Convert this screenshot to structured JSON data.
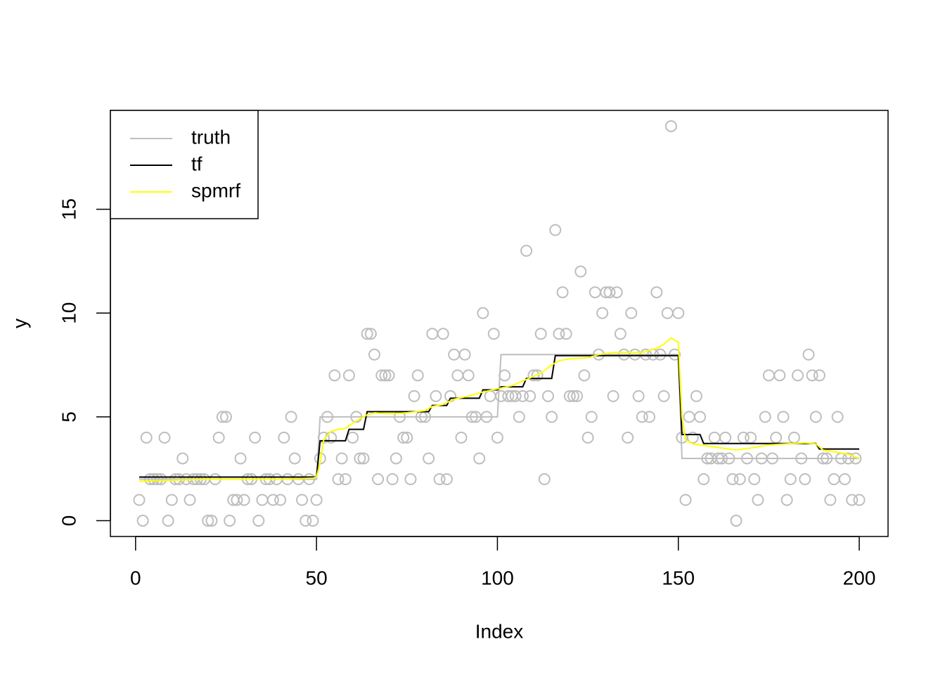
{
  "chart_data": {
    "type": "line",
    "x_label": "Index",
    "y_label": "y",
    "xlim": [
      -6.96,
      207.96
    ],
    "ylim": [
      -0.76,
      19.76
    ],
    "xticks": [
      0,
      50,
      100,
      150,
      200
    ],
    "yticks": [
      0,
      5,
      10,
      15
    ],
    "legend": "top-left",
    "scatter": {
      "color": "#bebebe",
      "x": [
        1,
        2,
        3,
        4,
        5,
        6,
        7,
        8,
        9,
        10,
        11,
        12,
        13,
        14,
        15,
        16,
        17,
        18,
        19,
        20,
        21,
        22,
        23,
        24,
        25,
        26,
        27,
        28,
        29,
        30,
        31,
        32,
        33,
        34,
        35,
        36,
        37,
        38,
        39,
        40,
        41,
        42,
        43,
        44,
        45,
        46,
        47,
        48,
        49,
        50,
        51,
        52,
        53,
        54,
        55,
        56,
        57,
        58,
        59,
        60,
        61,
        62,
        63,
        64,
        65,
        66,
        67,
        68,
        69,
        70,
        71,
        72,
        73,
        74,
        75,
        76,
        77,
        78,
        79,
        80,
        81,
        82,
        83,
        84,
        85,
        86,
        87,
        88,
        89,
        90,
        91,
        92,
        93,
        94,
        95,
        96,
        97,
        98,
        99,
        100,
        101,
        102,
        103,
        104,
        105,
        106,
        107,
        108,
        109,
        110,
        111,
        112,
        113,
        114,
        115,
        116,
        117,
        118,
        119,
        120,
        121,
        122,
        123,
        124,
        125,
        126,
        127,
        128,
        129,
        130,
        131,
        132,
        133,
        134,
        135,
        136,
        137,
        138,
        139,
        140,
        141,
        142,
        143,
        144,
        145,
        146,
        147,
        148,
        149,
        150,
        151,
        152,
        153,
        154,
        155,
        156,
        157,
        158,
        159,
        160,
        161,
        162,
        163,
        164,
        165,
        166,
        167,
        168,
        169,
        170,
        171,
        172,
        173,
        174,
        175,
        176,
        177,
        178,
        179,
        180,
        181,
        182,
        183,
        184,
        185,
        186,
        187,
        188,
        189,
        190,
        191,
        192,
        193,
        194,
        195,
        196,
        197,
        198,
        199,
        200
      ],
      "values": [
        1,
        0,
        4,
        2,
        2,
        2,
        2,
        4,
        0,
        1,
        2,
        2,
        3,
        2,
        1,
        2,
        2,
        2,
        2,
        0,
        0,
        2,
        4,
        5,
        5,
        0,
        1,
        1,
        3,
        1,
        2,
        2,
        4,
        0,
        1,
        2,
        2,
        1,
        2,
        1,
        4,
        2,
        5,
        3,
        2,
        1,
        0,
        2,
        0,
        1,
        3,
        4,
        5,
        4,
        7,
        2,
        3,
        2,
        7,
        4,
        5,
        3,
        3,
        9,
        9,
        8,
        2,
        7,
        7,
        7,
        2,
        3,
        5,
        4,
        4,
        2,
        6,
        7,
        5,
        5,
        3,
        9,
        6,
        2,
        9,
        2,
        6,
        8,
        7,
        4,
        8,
        7,
        5,
        5,
        3,
        10,
        5,
        6,
        9,
        4,
        6,
        7,
        6,
        6,
        6,
        5,
        6,
        13,
        6,
        7,
        7,
        9,
        2,
        6,
        5,
        14,
        9,
        11,
        9,
        6,
        6,
        6,
        12,
        7,
        4,
        5,
        11,
        8,
        10,
        11,
        11,
        6,
        11,
        9,
        8,
        4,
        10,
        8,
        6,
        5,
        8,
        5,
        8,
        11,
        8,
        6,
        10,
        19,
        8,
        10,
        4,
        1,
        5,
        4,
        6,
        5,
        2,
        3,
        3,
        4,
        3,
        3,
        4,
        3,
        2,
        0,
        2,
        4,
        3,
        4,
        2,
        1,
        3,
        5,
        7,
        3,
        4,
        7,
        5,
        1,
        2,
        4,
        7,
        3,
        2,
        8,
        7,
        5,
        7,
        3,
        3,
        1,
        2,
        5,
        3,
        2,
        3,
        1,
        3,
        1
      ]
    },
    "series": [
      {
        "name": "truth",
        "color": "#bebebe",
        "x": [
          1,
          50,
          51,
          100,
          101,
          150,
          151,
          200
        ],
        "values": [
          2,
          2,
          5,
          5,
          8,
          8,
          3,
          3
        ]
      },
      {
        "name": "tf",
        "color": "#000000",
        "x": [
          1,
          50,
          51,
          58,
          59,
          63,
          64,
          81,
          82,
          86,
          87,
          95,
          96,
          100,
          101,
          107,
          108,
          115,
          116,
          150,
          151,
          156,
          157,
          188,
          189,
          200
        ],
        "values": [
          2.1,
          2.1,
          3.85,
          3.85,
          4.4,
          4.4,
          5.25,
          5.25,
          5.55,
          5.55,
          5.9,
          5.9,
          6.3,
          6.3,
          6.45,
          6.45,
          6.85,
          6.85,
          7.95,
          7.95,
          4.15,
          4.15,
          3.72,
          3.72,
          3.45,
          3.45
        ]
      },
      {
        "name": "spmrf",
        "color": "#ffff00",
        "x": [
          1,
          10,
          20,
          30,
          40,
          49,
          50,
          51,
          52,
          54,
          56,
          58,
          60,
          62,
          64,
          66,
          70,
          75,
          80,
          82,
          85,
          88,
          92,
          96,
          100,
          104,
          108,
          112,
          115,
          117,
          120,
          125,
          128,
          132,
          136,
          140,
          144,
          146,
          148,
          150,
          151,
          152,
          154,
          158,
          162,
          166,
          170,
          175,
          180,
          185,
          188,
          190,
          194,
          197,
          200
        ],
        "values": [
          1.9,
          1.95,
          2.0,
          2.0,
          2.0,
          2.05,
          2.1,
          2.8,
          3.9,
          4.3,
          4.4,
          4.45,
          4.7,
          4.9,
          5.1,
          5.2,
          5.15,
          5.2,
          5.3,
          5.5,
          5.6,
          5.85,
          6.0,
          6.2,
          6.35,
          6.5,
          6.8,
          7.1,
          7.5,
          7.7,
          7.8,
          7.85,
          8.0,
          8.1,
          8.1,
          8.1,
          8.3,
          8.5,
          8.8,
          8.6,
          5.0,
          3.9,
          3.7,
          3.6,
          3.5,
          3.4,
          3.5,
          3.65,
          3.7,
          3.75,
          3.7,
          3.4,
          3.3,
          3.2,
          3.0
        ]
      }
    ]
  }
}
